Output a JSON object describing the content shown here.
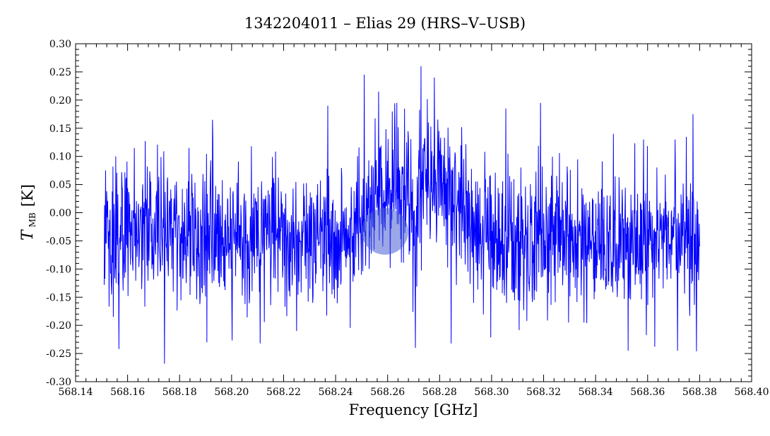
{
  "chart_data": {
    "type": "line",
    "title": "1342204011 – Elias 29 (HRS–V–USB)",
    "xlabel": "Frequency [GHz]",
    "ylabel": {
      "symbol": "T",
      "subscript": "MB",
      "unit": "[K]"
    },
    "xlim": [
      568.14,
      568.4
    ],
    "ylim": [
      -0.3,
      0.3
    ],
    "x_ticks": [
      "568.14",
      "568.16",
      "568.18",
      "568.20",
      "568.22",
      "568.24",
      "568.26",
      "568.28",
      "568.30",
      "568.32",
      "568.34",
      "568.36",
      "568.38",
      "568.40"
    ],
    "y_ticks": [
      "-0.30",
      "-0.25",
      "-0.20",
      "-0.15",
      "-0.10",
      "-0.05",
      "0.00",
      "0.05",
      "0.10",
      "0.15",
      "0.20",
      "0.25",
      "0.30"
    ],
    "grid": false,
    "series": [
      {
        "color": "#0000ff",
        "x_start": 568.151,
        "x_end": 568.38,
        "points_total": 1700,
        "noise_rms": 0.06,
        "baseline": [
          [
            568.151,
            -0.04
          ],
          [
            568.24,
            -0.04
          ],
          [
            568.25,
            -0.03
          ],
          [
            568.256,
            0.02
          ],
          [
            568.262,
            0.05
          ],
          [
            568.268,
            0.03
          ],
          [
            568.27,
            -0.02
          ],
          [
            568.272,
            0.04
          ],
          [
            568.276,
            0.06
          ],
          [
            568.285,
            0.03
          ],
          [
            568.295,
            -0.03
          ],
          [
            568.3,
            -0.06
          ],
          [
            568.32,
            -0.05
          ],
          [
            568.35,
            -0.05
          ],
          [
            568.38,
            -0.04
          ]
        ],
        "spikes": [
          [
            568.1515,
            0.075
          ],
          [
            568.1545,
            -0.185
          ],
          [
            568.1555,
            0.1
          ],
          [
            568.1567,
            -0.242
          ],
          [
            568.1626,
            0.115
          ],
          [
            568.1742,
            -0.268
          ],
          [
            568.1836,
            0.115
          ],
          [
            568.1927,
            0.165
          ],
          [
            568.211,
            -0.232
          ],
          [
            568.225,
            -0.21
          ],
          [
            568.237,
            0.19
          ],
          [
            568.251,
            0.245
          ],
          [
            568.2565,
            0.215
          ],
          [
            568.2635,
            0.195
          ],
          [
            568.2707,
            -0.24
          ],
          [
            568.2728,
            0.26
          ],
          [
            568.278,
            0.24
          ],
          [
            568.2845,
            -0.232
          ],
          [
            568.293,
            -0.16
          ],
          [
            568.3055,
            0.185
          ],
          [
            568.3188,
            0.195
          ],
          [
            568.3355,
            -0.195
          ],
          [
            568.3468,
            0.14
          ],
          [
            568.3525,
            -0.245
          ],
          [
            568.3585,
            0.13
          ],
          [
            568.3628,
            -0.238
          ],
          [
            568.3705,
            0.13
          ],
          [
            568.3715,
            -0.245
          ],
          [
            568.3775,
            0.175
          ],
          [
            568.3788,
            -0.246
          ],
          [
            568.38,
            -0.06
          ]
        ]
      }
    ]
  },
  "watermark": {
    "color": "#4a5fd4"
  }
}
